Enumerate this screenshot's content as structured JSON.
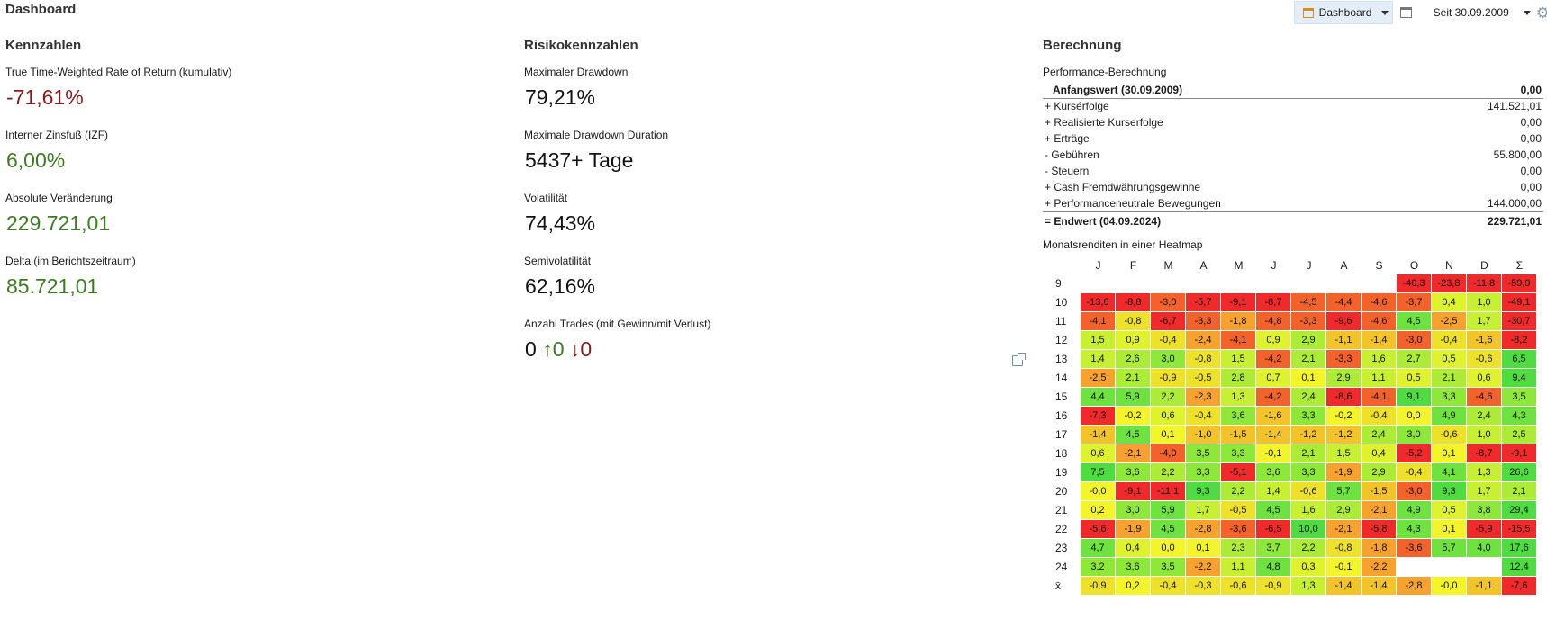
{
  "header": {
    "title": "Dashboard",
    "dashboard_button": "Dashboard",
    "period": "Seit 30.09.2009"
  },
  "icons": {
    "dashboard": "dashboard-icon",
    "window": "window-icon",
    "settings": "gear-icon",
    "external": "external-link-icon"
  },
  "colors": {
    "negative": "#8b1a1a",
    "positive": "#3a7d1e"
  },
  "kennzahlen": {
    "title": "Kennzahlen",
    "items": [
      {
        "label": "True Time-Weighted Rate of Return (kumulativ)",
        "value": "-71,61%",
        "tone": "neg"
      },
      {
        "label": "Interner Zinsfuß (IZF)",
        "value": "6,00%",
        "tone": "pos"
      },
      {
        "label": "Absolute Veränderung",
        "value": "229.721,01",
        "tone": "pos"
      },
      {
        "label": "Delta (im Berichtszeitraum)",
        "value": "85.721,01",
        "tone": "pos"
      }
    ]
  },
  "risiko": {
    "title": "Risikokennzahlen",
    "items": [
      {
        "label": "Maximaler Drawdown",
        "value": "79,21%"
      },
      {
        "label": "Maximale Drawdown Duration",
        "value": "5437+ Tage"
      },
      {
        "label": "Volatilität",
        "value": "74,43%"
      },
      {
        "label": "Semivolatilität",
        "value": "62,16%"
      }
    ],
    "trades_label": "Anzahl Trades (mit Gewinn/mit Verlust)",
    "trades_total": "0",
    "trades_win": "↑0",
    "trades_loss": "↓0"
  },
  "berechnung": {
    "title": "Berechnung",
    "perf_title": "Performance-Berechnung",
    "start_label": "Anfangswert (30.09.2009)",
    "start_value": "0,00",
    "rows": [
      {
        "label": "+ Kursérfolge",
        "value": "141.521,01"
      },
      {
        "label": "+ Realisierte Kurserfolge",
        "value": "0,00"
      },
      {
        "label": "+ Erträge",
        "value": "0,00"
      },
      {
        "label": "-  Gebühren",
        "value": "55.800,00"
      },
      {
        "label": "-  Steuern",
        "value": "0,00"
      },
      {
        "label": "+ Cash Fremdwährungsgewinne",
        "value": "0,00"
      },
      {
        "label": "+ Performanceneutrale Bewegungen",
        "value": "144.000,00"
      }
    ],
    "end_label": "= Endwert (04.09.2024)",
    "end_value": "229.721,01"
  },
  "heatmap": {
    "title": "Monatsrenditen in einer Heatmap",
    "months": [
      "J",
      "F",
      "M",
      "A",
      "M",
      "J",
      "J",
      "A",
      "S",
      "O",
      "N",
      "D",
      "Σ"
    ],
    "rows": [
      {
        "year": "9",
        "values": [
          null,
          null,
          null,
          null,
          null,
          null,
          null,
          null,
          null,
          -40.3,
          -23.8,
          -11.8,
          -59.9
        ]
      },
      {
        "year": "10",
        "values": [
          -13.6,
          -8.8,
          -3.0,
          -5.7,
          -9.1,
          -8.7,
          -4.5,
          -4.4,
          -4.6,
          -3.7,
          0.4,
          1.0,
          -49.1
        ]
      },
      {
        "year": "11",
        "values": [
          -4.1,
          -0.8,
          -6.7,
          -3.3,
          -1.8,
          -4.8,
          -3.3,
          -9.6,
          -4.6,
          4.5,
          -2.5,
          1.7,
          -30.7
        ]
      },
      {
        "year": "12",
        "values": [
          1.5,
          0.9,
          -0.4,
          -2.4,
          -4.1,
          0.9,
          2.9,
          -1.1,
          -1.4,
          -3.0,
          -0.4,
          -1.6,
          -8.2
        ]
      },
      {
        "year": "13",
        "values": [
          1.4,
          2.6,
          3.0,
          -0.8,
          1.5,
          -4.2,
          2.1,
          -3.3,
          1.6,
          2.7,
          0.5,
          -0.6,
          6.5
        ]
      },
      {
        "year": "14",
        "values": [
          -2.5,
          2.1,
          -0.9,
          -0.5,
          2.8,
          0.7,
          0.1,
          2.9,
          1.1,
          0.5,
          2.1,
          0.6,
          9.4
        ]
      },
      {
        "year": "15",
        "values": [
          4.4,
          5.9,
          2.2,
          -2.3,
          1.3,
          -4.2,
          2.4,
          -8.6,
          -4.1,
          9.1,
          3.3,
          -4.6,
          3.5
        ]
      },
      {
        "year": "16",
        "values": [
          -7.3,
          -0.2,
          0.6,
          -0.4,
          3.6,
          -1.6,
          3.3,
          -0.2,
          -0.4,
          0.0,
          4.9,
          2.4,
          4.3
        ]
      },
      {
        "year": "17",
        "values": [
          -1.4,
          4.5,
          0.1,
          -1.0,
          -1.5,
          -1.4,
          -1.2,
          -1.2,
          2.4,
          3.0,
          -0.6,
          1.0,
          2.5
        ]
      },
      {
        "year": "18",
        "values": [
          0.6,
          -2.1,
          -4.0,
          3.5,
          3.3,
          -0.1,
          2.1,
          1.5,
          0.4,
          -5.2,
          0.1,
          -8.7,
          -9.1
        ]
      },
      {
        "year": "19",
        "values": [
          7.5,
          3.6,
          2.2,
          3.3,
          -5.1,
          3.6,
          3.3,
          -1.9,
          2.9,
          -0.4,
          4.1,
          1.3,
          26.6
        ]
      },
      {
        "year": "20",
        "values": [
          -0.0,
          -9.1,
          -11.1,
          9.3,
          2.2,
          1.4,
          -0.6,
          5.7,
          -1.5,
          -3.0,
          9.3,
          1.7,
          2.1
        ]
      },
      {
        "year": "21",
        "values": [
          0.2,
          3.0,
          5.9,
          1.7,
          -0.5,
          4.5,
          1.6,
          2.9,
          -2.1,
          4.9,
          0.5,
          3.8,
          29.4
        ]
      },
      {
        "year": "22",
        "values": [
          -5.6,
          -1.9,
          4.5,
          -2.8,
          -3.6,
          -6.5,
          10.0,
          -2.1,
          -5.8,
          4.3,
          0.1,
          -5.9,
          -15.5
        ]
      },
      {
        "year": "23",
        "values": [
          4.7,
          0.4,
          0.0,
          0.1,
          2.3,
          3.7,
          2.2,
          -0.8,
          -1.8,
          -3.6,
          5.7,
          4.0,
          17.6
        ]
      },
      {
        "year": "24",
        "values": [
          3.2,
          3.6,
          3.5,
          -2.2,
          1.1,
          4.8,
          0.3,
          -0.1,
          -2.2,
          null,
          null,
          null,
          12.4
        ]
      },
      {
        "year": "x̄",
        "values": [
          -0.9,
          0.2,
          -0.4,
          -0.3,
          -0.6,
          -0.9,
          1.3,
          -1.4,
          -1.4,
          -2.8,
          -0.0,
          -1.1,
          -7.6
        ]
      }
    ]
  }
}
